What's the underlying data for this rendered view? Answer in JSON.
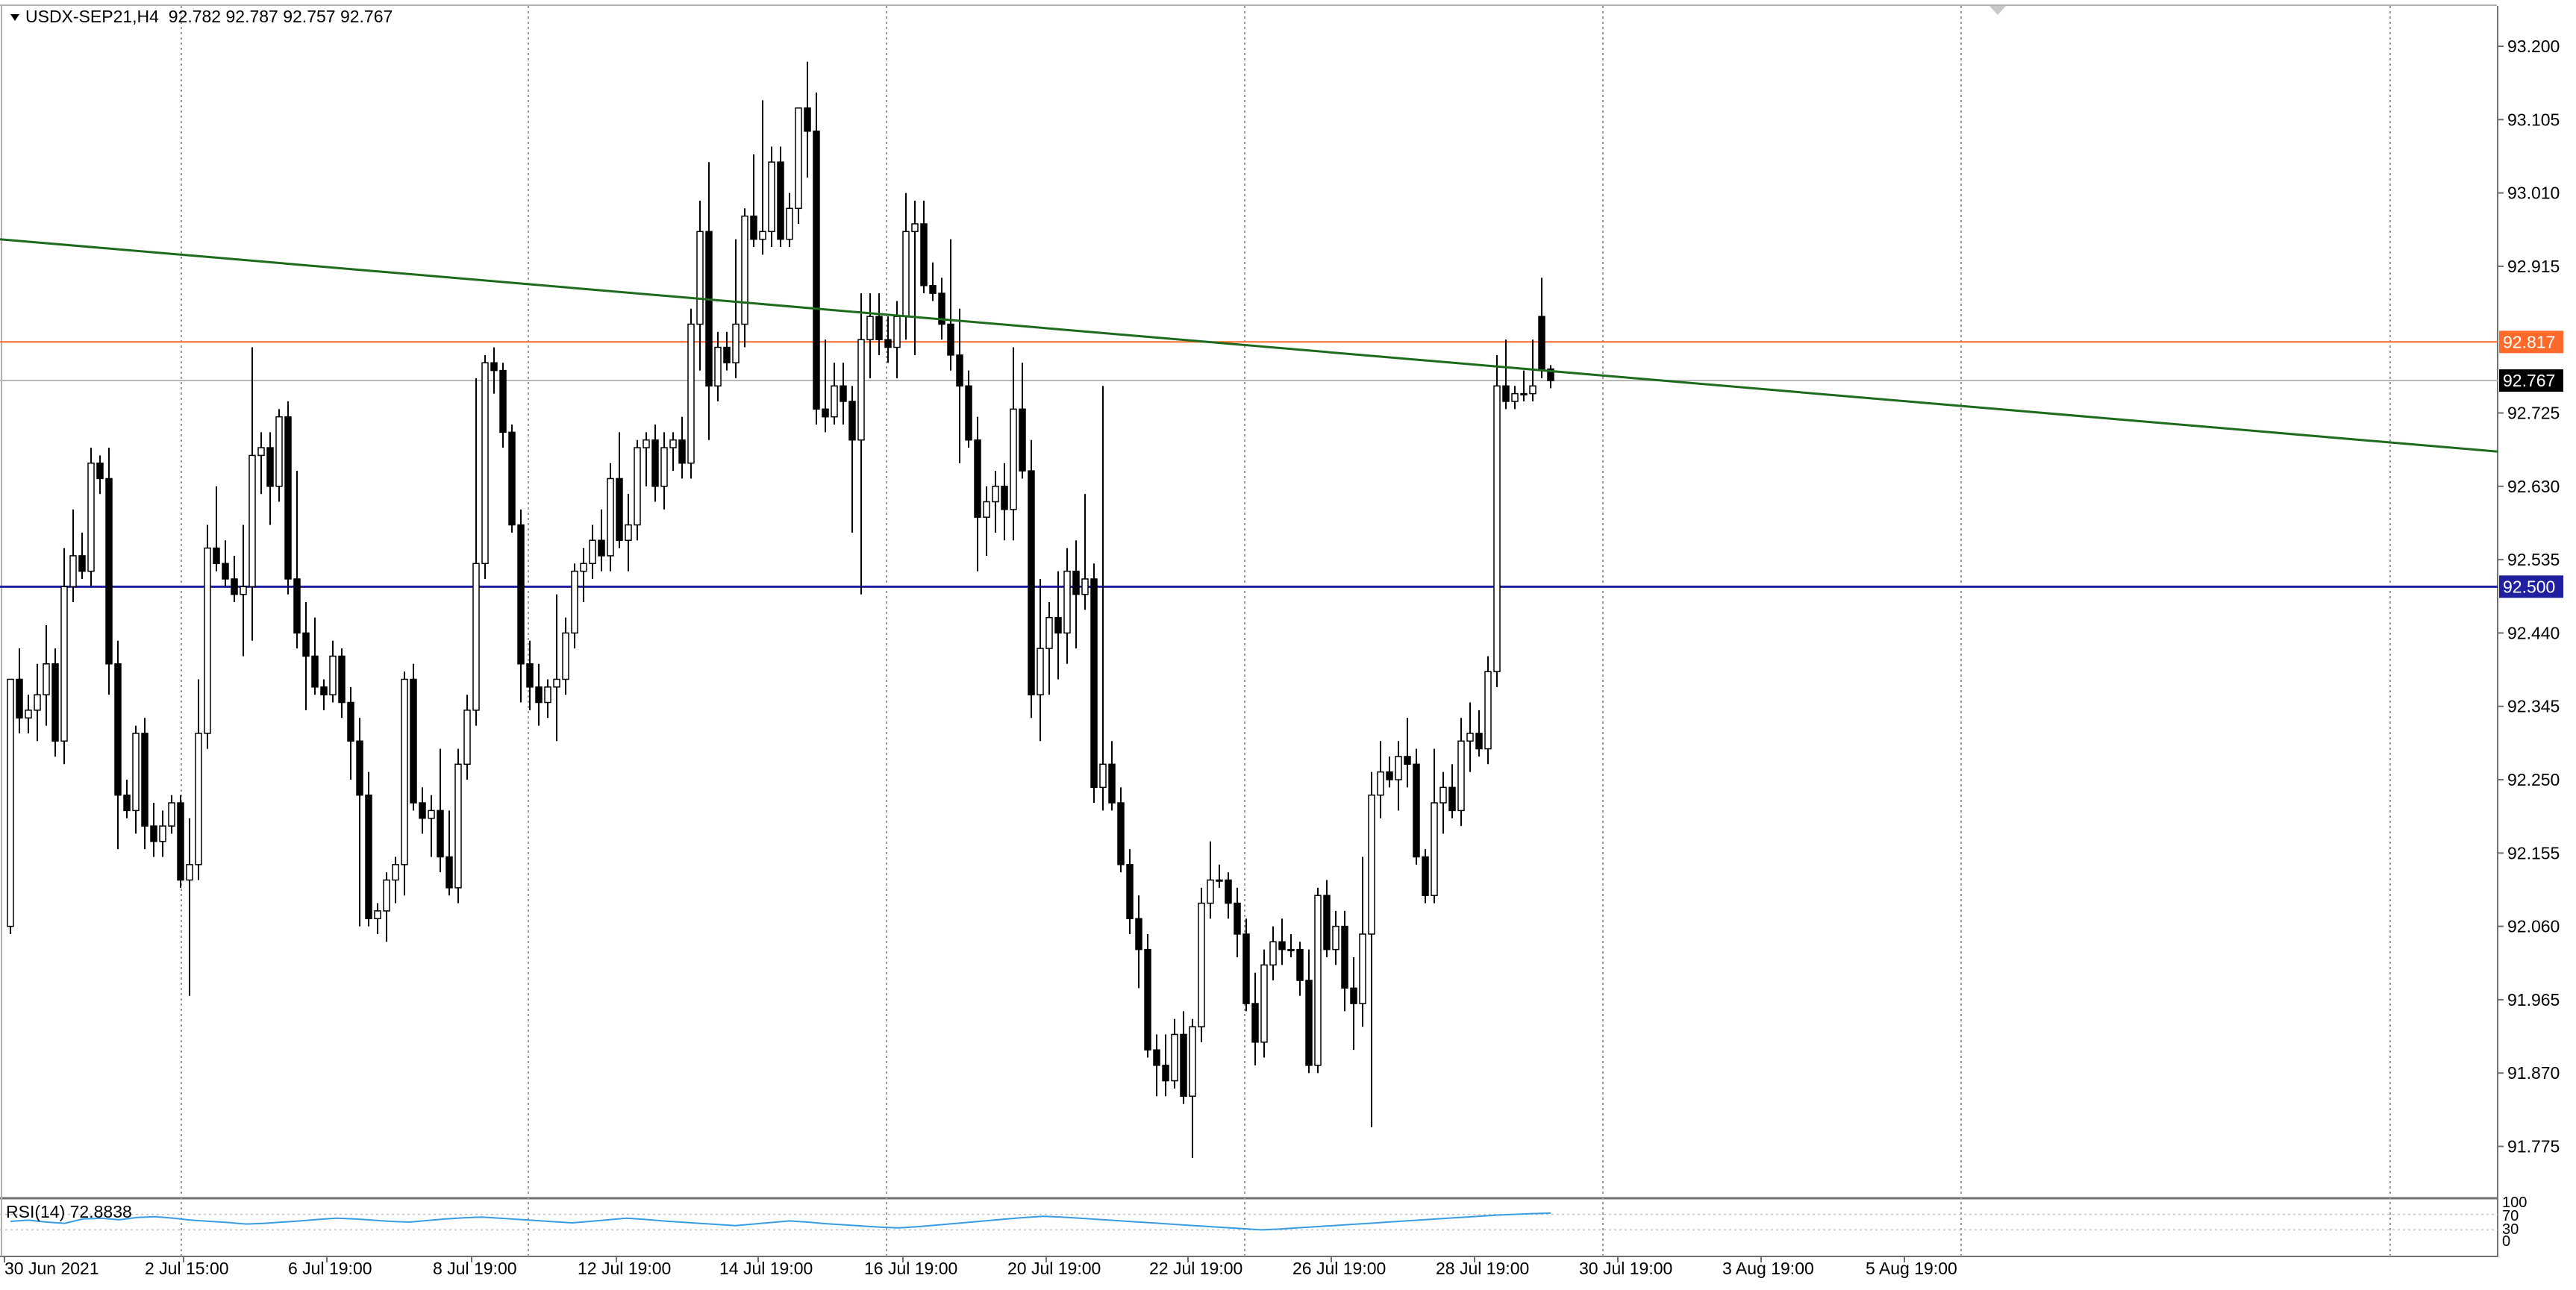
{
  "header": {
    "symbol": "USDX-SEP21,H4",
    "ohlc": "92.782 92.787 92.757 92.767"
  },
  "rsi": {
    "label": "RSI(14) 72.8838",
    "levels": [
      "100",
      "70",
      "30",
      "0"
    ]
  },
  "price_axis": {
    "ticks": [
      "93.200",
      "93.105",
      "93.010",
      "92.915",
      "92.725",
      "92.630",
      "92.535",
      "92.440",
      "92.345",
      "92.250",
      "92.155",
      "92.060",
      "91.965",
      "91.870",
      "91.775"
    ]
  },
  "markers": {
    "resistance": {
      "label": "92.817",
      "value": 92.817,
      "color": "#ff6a2a"
    },
    "current": {
      "label": "92.767",
      "value": 92.767,
      "color": "#000000"
    },
    "support": {
      "label": "92.500",
      "value": 92.5,
      "color": "#1f1fa0"
    }
  },
  "time_axis": {
    "labels": [
      "30 Jun 2021",
      "2 Jul 15:00",
      "6 Jul 19:00",
      "8 Jul 19:00",
      "12 Jul 19:00",
      "14 Jul 19:00",
      "16 Jul 19:00",
      "20 Jul 19:00",
      "22 Jul 19:00",
      "26 Jul 19:00",
      "28 Jul 19:00",
      "30 Jul 19:00",
      "3 Aug 19:00",
      "5 Aug 19:00"
    ]
  },
  "colors": {
    "trendline": "#1e6b1e",
    "bull_fill": "#ffffff",
    "bear_fill": "#000000",
    "rsi_line": "#3a9ce0"
  },
  "chart_data": {
    "type": "candlestick",
    "timeframe": "H4",
    "symbol": "USDX-SEP21",
    "ylim": [
      91.74,
      93.24
    ],
    "horizontal_lines": [
      92.817,
      92.767,
      92.5
    ],
    "trendline": {
      "start_value": 92.95,
      "end_value": 92.675
    },
    "candles": [
      {
        "o": 92.06,
        "h": 92.38,
        "l": 92.05,
        "c": 92.38
      },
      {
        "o": 92.38,
        "h": 92.42,
        "l": 92.31,
        "c": 92.33
      },
      {
        "o": 92.33,
        "h": 92.36,
        "l": 92.31,
        "c": 92.34
      },
      {
        "o": 92.34,
        "h": 92.4,
        "l": 92.3,
        "c": 92.36
      },
      {
        "o": 92.36,
        "h": 92.45,
        "l": 92.32,
        "c": 92.4
      },
      {
        "o": 92.4,
        "h": 92.42,
        "l": 92.28,
        "c": 92.3
      },
      {
        "o": 92.3,
        "h": 92.55,
        "l": 92.27,
        "c": 92.5
      },
      {
        "o": 92.5,
        "h": 92.6,
        "l": 92.48,
        "c": 92.54
      },
      {
        "o": 92.54,
        "h": 92.57,
        "l": 92.51,
        "c": 92.52
      },
      {
        "o": 92.52,
        "h": 92.68,
        "l": 92.5,
        "c": 92.66
      },
      {
        "o": 92.66,
        "h": 92.67,
        "l": 92.62,
        "c": 92.64
      },
      {
        "o": 92.64,
        "h": 92.68,
        "l": 92.36,
        "c": 92.4
      },
      {
        "o": 92.4,
        "h": 92.43,
        "l": 92.16,
        "c": 92.23
      },
      {
        "o": 92.23,
        "h": 92.25,
        "l": 92.2,
        "c": 92.21
      },
      {
        "o": 92.21,
        "h": 92.32,
        "l": 92.18,
        "c": 92.31
      },
      {
        "o": 92.31,
        "h": 92.33,
        "l": 92.16,
        "c": 92.19
      },
      {
        "o": 92.19,
        "h": 92.22,
        "l": 92.15,
        "c": 92.17
      },
      {
        "o": 92.17,
        "h": 92.21,
        "l": 92.15,
        "c": 92.19
      },
      {
        "o": 92.19,
        "h": 92.23,
        "l": 92.18,
        "c": 92.22
      },
      {
        "o": 92.22,
        "h": 92.23,
        "l": 92.11,
        "c": 92.12
      },
      {
        "o": 92.12,
        "h": 92.2,
        "l": 91.97,
        "c": 92.14
      },
      {
        "o": 92.14,
        "h": 92.38,
        "l": 92.12,
        "c": 92.31
      },
      {
        "o": 92.31,
        "h": 92.58,
        "l": 92.29,
        "c": 92.55
      },
      {
        "o": 92.55,
        "h": 92.63,
        "l": 92.52,
        "c": 92.53
      },
      {
        "o": 92.53,
        "h": 92.56,
        "l": 92.5,
        "c": 92.51
      },
      {
        "o": 92.51,
        "h": 92.54,
        "l": 92.48,
        "c": 92.49
      },
      {
        "o": 92.49,
        "h": 92.58,
        "l": 92.41,
        "c": 92.5
      },
      {
        "o": 92.5,
        "h": 92.81,
        "l": 92.43,
        "c": 92.67
      },
      {
        "o": 92.67,
        "h": 92.7,
        "l": 92.62,
        "c": 92.68
      },
      {
        "o": 92.68,
        "h": 92.7,
        "l": 92.58,
        "c": 92.63
      },
      {
        "o": 92.63,
        "h": 92.73,
        "l": 92.61,
        "c": 92.72
      },
      {
        "o": 92.72,
        "h": 92.74,
        "l": 92.49,
        "c": 92.51
      },
      {
        "o": 92.51,
        "h": 92.65,
        "l": 92.42,
        "c": 92.44
      },
      {
        "o": 92.44,
        "h": 92.48,
        "l": 92.34,
        "c": 92.41
      },
      {
        "o": 92.41,
        "h": 92.46,
        "l": 92.36,
        "c": 92.37
      },
      {
        "o": 92.37,
        "h": 92.38,
        "l": 92.34,
        "c": 92.36
      },
      {
        "o": 92.36,
        "h": 92.43,
        "l": 92.35,
        "c": 92.41
      },
      {
        "o": 92.41,
        "h": 92.42,
        "l": 92.33,
        "c": 92.35
      },
      {
        "o": 92.35,
        "h": 92.37,
        "l": 92.25,
        "c": 92.3
      },
      {
        "o": 92.3,
        "h": 92.33,
        "l": 92.06,
        "c": 92.23
      },
      {
        "o": 92.23,
        "h": 92.26,
        "l": 92.06,
        "c": 92.07
      },
      {
        "o": 92.07,
        "h": 92.09,
        "l": 92.05,
        "c": 92.08
      },
      {
        "o": 92.08,
        "h": 92.13,
        "l": 92.04,
        "c": 92.12
      },
      {
        "o": 92.12,
        "h": 92.15,
        "l": 92.09,
        "c": 92.14
      },
      {
        "o": 92.14,
        "h": 92.39,
        "l": 92.1,
        "c": 92.38
      },
      {
        "o": 92.38,
        "h": 92.4,
        "l": 92.21,
        "c": 92.22
      },
      {
        "o": 92.22,
        "h": 92.24,
        "l": 92.18,
        "c": 92.2
      },
      {
        "o": 92.2,
        "h": 92.23,
        "l": 92.15,
        "c": 92.21
      },
      {
        "o": 92.21,
        "h": 92.29,
        "l": 92.13,
        "c": 92.15
      },
      {
        "o": 92.15,
        "h": 92.21,
        "l": 92.1,
        "c": 92.11
      },
      {
        "o": 92.11,
        "h": 92.29,
        "l": 92.09,
        "c": 92.27
      },
      {
        "o": 92.27,
        "h": 92.36,
        "l": 92.25,
        "c": 92.34
      },
      {
        "o": 92.34,
        "h": 92.77,
        "l": 92.32,
        "c": 92.53
      },
      {
        "o": 92.53,
        "h": 92.8,
        "l": 92.51,
        "c": 92.79
      },
      {
        "o": 92.79,
        "h": 92.81,
        "l": 92.75,
        "c": 92.78
      },
      {
        "o": 92.78,
        "h": 92.79,
        "l": 92.68,
        "c": 92.7
      },
      {
        "o": 92.7,
        "h": 92.71,
        "l": 92.57,
        "c": 92.58
      },
      {
        "o": 92.58,
        "h": 92.6,
        "l": 92.35,
        "c": 92.4
      },
      {
        "o": 92.4,
        "h": 92.43,
        "l": 92.34,
        "c": 92.37
      },
      {
        "o": 92.37,
        "h": 92.4,
        "l": 92.32,
        "c": 92.35
      },
      {
        "o": 92.35,
        "h": 92.38,
        "l": 92.33,
        "c": 92.37
      },
      {
        "o": 92.37,
        "h": 92.49,
        "l": 92.3,
        "c": 92.38
      },
      {
        "o": 92.38,
        "h": 92.46,
        "l": 92.36,
        "c": 92.44
      },
      {
        "o": 92.44,
        "h": 92.53,
        "l": 92.42,
        "c": 92.52
      },
      {
        "o": 92.52,
        "h": 92.55,
        "l": 92.48,
        "c": 92.53
      },
      {
        "o": 92.53,
        "h": 92.58,
        "l": 92.51,
        "c": 92.56
      },
      {
        "o": 92.56,
        "h": 92.6,
        "l": 92.52,
        "c": 92.54
      },
      {
        "o": 92.54,
        "h": 92.66,
        "l": 92.52,
        "c": 92.64
      },
      {
        "o": 92.64,
        "h": 92.7,
        "l": 92.55,
        "c": 92.56
      },
      {
        "o": 92.56,
        "h": 92.62,
        "l": 92.52,
        "c": 92.58
      },
      {
        "o": 92.58,
        "h": 92.69,
        "l": 92.56,
        "c": 92.68
      },
      {
        "o": 92.68,
        "h": 92.7,
        "l": 92.63,
        "c": 92.69
      },
      {
        "o": 92.69,
        "h": 92.71,
        "l": 92.61,
        "c": 92.63
      },
      {
        "o": 92.63,
        "h": 92.7,
        "l": 92.6,
        "c": 92.68
      },
      {
        "o": 92.68,
        "h": 92.7,
        "l": 92.65,
        "c": 92.69
      },
      {
        "o": 92.69,
        "h": 92.72,
        "l": 92.64,
        "c": 92.66
      },
      {
        "o": 92.66,
        "h": 92.86,
        "l": 92.64,
        "c": 92.84
      },
      {
        "o": 92.84,
        "h": 93.0,
        "l": 92.78,
        "c": 92.96
      },
      {
        "o": 92.96,
        "h": 93.05,
        "l": 92.69,
        "c": 92.76
      },
      {
        "o": 92.76,
        "h": 92.83,
        "l": 92.74,
        "c": 92.81
      },
      {
        "o": 92.81,
        "h": 92.83,
        "l": 92.78,
        "c": 92.79
      },
      {
        "o": 92.79,
        "h": 92.95,
        "l": 92.77,
        "c": 92.84
      },
      {
        "o": 92.84,
        "h": 92.99,
        "l": 92.81,
        "c": 92.98
      },
      {
        "o": 92.98,
        "h": 93.06,
        "l": 92.94,
        "c": 92.95
      },
      {
        "o": 92.95,
        "h": 93.13,
        "l": 92.93,
        "c": 92.96
      },
      {
        "o": 92.96,
        "h": 93.07,
        "l": 92.94,
        "c": 93.05
      },
      {
        "o": 93.05,
        "h": 93.07,
        "l": 92.94,
        "c": 92.95
      },
      {
        "o": 92.95,
        "h": 93.01,
        "l": 92.94,
        "c": 92.99
      },
      {
        "o": 92.99,
        "h": 93.12,
        "l": 92.97,
        "c": 93.12
      },
      {
        "o": 93.12,
        "h": 93.18,
        "l": 93.03,
        "c": 93.09
      },
      {
        "o": 93.09,
        "h": 93.14,
        "l": 92.71,
        "c": 92.73
      },
      {
        "o": 92.73,
        "h": 92.82,
        "l": 92.7,
        "c": 92.72
      },
      {
        "o": 92.72,
        "h": 92.79,
        "l": 92.71,
        "c": 92.76
      },
      {
        "o": 92.76,
        "h": 92.79,
        "l": 92.71,
        "c": 92.74
      },
      {
        "o": 92.74,
        "h": 92.76,
        "l": 92.57,
        "c": 92.69
      },
      {
        "o": 92.69,
        "h": 92.88,
        "l": 92.49,
        "c": 92.82
      },
      {
        "o": 92.82,
        "h": 92.88,
        "l": 92.77,
        "c": 92.85
      },
      {
        "o": 92.85,
        "h": 92.88,
        "l": 92.8,
        "c": 92.82
      },
      {
        "o": 92.82,
        "h": 92.85,
        "l": 92.79,
        "c": 92.81
      },
      {
        "o": 92.81,
        "h": 92.87,
        "l": 92.77,
        "c": 92.85
      },
      {
        "o": 92.85,
        "h": 93.01,
        "l": 92.82,
        "c": 92.96
      },
      {
        "o": 92.96,
        "h": 93.0,
        "l": 92.8,
        "c": 92.97
      },
      {
        "o": 92.97,
        "h": 93.0,
        "l": 92.88,
        "c": 92.89
      },
      {
        "o": 92.89,
        "h": 92.92,
        "l": 92.87,
        "c": 92.88
      },
      {
        "o": 92.88,
        "h": 92.9,
        "l": 92.82,
        "c": 92.84
      },
      {
        "o": 92.84,
        "h": 92.95,
        "l": 92.78,
        "c": 92.8
      },
      {
        "o": 92.8,
        "h": 92.86,
        "l": 92.66,
        "c": 92.76
      },
      {
        "o": 92.76,
        "h": 92.78,
        "l": 92.68,
        "c": 92.69
      },
      {
        "o": 92.69,
        "h": 92.72,
        "l": 92.52,
        "c": 92.59
      },
      {
        "o": 92.59,
        "h": 92.63,
        "l": 92.54,
        "c": 92.61
      },
      {
        "o": 92.61,
        "h": 92.65,
        "l": 92.57,
        "c": 92.63
      },
      {
        "o": 92.63,
        "h": 92.66,
        "l": 92.56,
        "c": 92.6
      },
      {
        "o": 92.6,
        "h": 92.81,
        "l": 92.56,
        "c": 92.73
      },
      {
        "o": 92.73,
        "h": 92.79,
        "l": 92.64,
        "c": 92.65
      },
      {
        "o": 92.65,
        "h": 92.69,
        "l": 92.33,
        "c": 92.36
      },
      {
        "o": 92.36,
        "h": 92.51,
        "l": 92.3,
        "c": 92.42
      },
      {
        "o": 92.42,
        "h": 92.48,
        "l": 92.36,
        "c": 92.46
      },
      {
        "o": 92.46,
        "h": 92.52,
        "l": 92.38,
        "c": 92.44
      },
      {
        "o": 92.44,
        "h": 92.55,
        "l": 92.4,
        "c": 92.52
      },
      {
        "o": 92.52,
        "h": 92.56,
        "l": 92.42,
        "c": 92.49
      },
      {
        "o": 92.49,
        "h": 92.62,
        "l": 92.47,
        "c": 92.51
      },
      {
        "o": 92.51,
        "h": 92.53,
        "l": 92.22,
        "c": 92.24
      },
      {
        "o": 92.24,
        "h": 92.76,
        "l": 92.21,
        "c": 92.27
      },
      {
        "o": 92.27,
        "h": 92.3,
        "l": 92.21,
        "c": 92.22
      },
      {
        "o": 92.22,
        "h": 92.24,
        "l": 92.13,
        "c": 92.14
      },
      {
        "o": 92.14,
        "h": 92.16,
        "l": 92.05,
        "c": 92.07
      },
      {
        "o": 92.07,
        "h": 92.1,
        "l": 91.98,
        "c": 92.03
      },
      {
        "o": 92.03,
        "h": 92.05,
        "l": 91.89,
        "c": 91.9
      },
      {
        "o": 91.9,
        "h": 91.92,
        "l": 91.84,
        "c": 91.88
      },
      {
        "o": 91.88,
        "h": 91.92,
        "l": 91.84,
        "c": 91.86
      },
      {
        "o": 91.86,
        "h": 91.94,
        "l": 91.85,
        "c": 91.92
      },
      {
        "o": 91.92,
        "h": 91.95,
        "l": 91.83,
        "c": 91.84
      },
      {
        "o": 91.84,
        "h": 91.94,
        "l": 91.76,
        "c": 91.93
      },
      {
        "o": 91.93,
        "h": 92.11,
        "l": 91.91,
        "c": 92.09
      },
      {
        "o": 92.09,
        "h": 92.17,
        "l": 92.07,
        "c": 92.12
      },
      {
        "o": 92.12,
        "h": 92.14,
        "l": 92.11,
        "c": 92.12
      },
      {
        "o": 92.12,
        "h": 92.13,
        "l": 92.07,
        "c": 92.09
      },
      {
        "o": 92.09,
        "h": 92.11,
        "l": 92.02,
        "c": 92.05
      },
      {
        "o": 92.05,
        "h": 92.07,
        "l": 91.95,
        "c": 91.96
      },
      {
        "o": 91.96,
        "h": 92.0,
        "l": 91.88,
        "c": 91.91
      },
      {
        "o": 91.91,
        "h": 92.03,
        "l": 91.89,
        "c": 92.01
      },
      {
        "o": 92.01,
        "h": 92.06,
        "l": 91.99,
        "c": 92.04
      },
      {
        "o": 92.04,
        "h": 92.07,
        "l": 92.01,
        "c": 92.03
      },
      {
        "o": 92.03,
        "h": 92.05,
        "l": 92.02,
        "c": 92.03
      },
      {
        "o": 92.03,
        "h": 92.04,
        "l": 91.97,
        "c": 91.99
      },
      {
        "o": 91.99,
        "h": 92.03,
        "l": 91.87,
        "c": 91.88
      },
      {
        "o": 91.88,
        "h": 92.11,
        "l": 91.87,
        "c": 92.1
      },
      {
        "o": 92.1,
        "h": 92.12,
        "l": 92.02,
        "c": 92.03
      },
      {
        "o": 92.03,
        "h": 92.08,
        "l": 92.01,
        "c": 92.06
      },
      {
        "o": 92.06,
        "h": 92.08,
        "l": 91.95,
        "c": 91.98
      },
      {
        "o": 91.98,
        "h": 92.02,
        "l": 91.9,
        "c": 91.96
      },
      {
        "o": 91.96,
        "h": 92.15,
        "l": 91.93,
        "c": 92.05
      },
      {
        "o": 92.05,
        "h": 92.26,
        "l": 91.8,
        "c": 92.23
      },
      {
        "o": 92.23,
        "h": 92.3,
        "l": 92.2,
        "c": 92.26
      },
      {
        "o": 92.26,
        "h": 92.28,
        "l": 92.24,
        "c": 92.25
      },
      {
        "o": 92.25,
        "h": 92.3,
        "l": 92.21,
        "c": 92.28
      },
      {
        "o": 92.28,
        "h": 92.33,
        "l": 92.24,
        "c": 92.27
      },
      {
        "o": 92.27,
        "h": 92.29,
        "l": 92.14,
        "c": 92.15
      },
      {
        "o": 92.15,
        "h": 92.16,
        "l": 92.09,
        "c": 92.1
      },
      {
        "o": 92.1,
        "h": 92.29,
        "l": 92.09,
        "c": 92.22
      },
      {
        "o": 92.22,
        "h": 92.26,
        "l": 92.18,
        "c": 92.24
      },
      {
        "o": 92.24,
        "h": 92.27,
        "l": 92.2,
        "c": 92.21
      },
      {
        "o": 92.21,
        "h": 92.33,
        "l": 92.19,
        "c": 92.3
      },
      {
        "o": 92.3,
        "h": 92.35,
        "l": 92.26,
        "c": 92.31
      },
      {
        "o": 92.31,
        "h": 92.34,
        "l": 92.28,
        "c": 92.29
      },
      {
        "o": 92.29,
        "h": 92.41,
        "l": 92.27,
        "c": 92.39
      },
      {
        "o": 92.39,
        "h": 92.8,
        "l": 92.37,
        "c": 92.76
      },
      {
        "o": 92.76,
        "h": 92.82,
        "l": 92.73,
        "c": 92.74
      },
      {
        "o": 92.74,
        "h": 92.76,
        "l": 92.73,
        "c": 92.75
      },
      {
        "o": 92.75,
        "h": 92.78,
        "l": 92.74,
        "c": 92.75
      },
      {
        "o": 92.75,
        "h": 92.82,
        "l": 92.74,
        "c": 92.76
      },
      {
        "o": 92.85,
        "h": 92.9,
        "l": 92.77,
        "c": 92.78
      },
      {
        "o": 92.782,
        "h": 92.787,
        "l": 92.757,
        "c": 92.767
      }
    ],
    "rsi": {
      "name": "RSI(14)",
      "last": 72.8838,
      "ylim": [
        0,
        100
      ],
      "levels": [
        70,
        30
      ],
      "values": [
        52,
        55,
        50,
        47,
        58,
        60,
        56,
        62,
        64,
        60,
        55,
        52,
        49,
        45,
        47,
        50,
        53,
        57,
        60,
        58,
        55,
        52,
        50,
        54,
        58,
        61,
        63,
        60,
        57,
        54,
        51,
        48,
        52,
        56,
        60,
        57,
        53,
        50,
        47,
        44,
        41,
        45,
        49,
        53,
        50,
        46,
        43,
        40,
        37,
        35,
        38,
        42,
        46,
        50,
        54,
        58,
        62,
        65,
        63,
        60,
        57,
        54,
        51,
        48,
        45,
        42,
        39,
        36,
        33,
        30,
        32,
        35,
        38,
        41,
        44,
        47,
        50,
        53,
        56,
        59,
        62,
        65,
        68,
        70,
        72,
        73
      ]
    }
  }
}
